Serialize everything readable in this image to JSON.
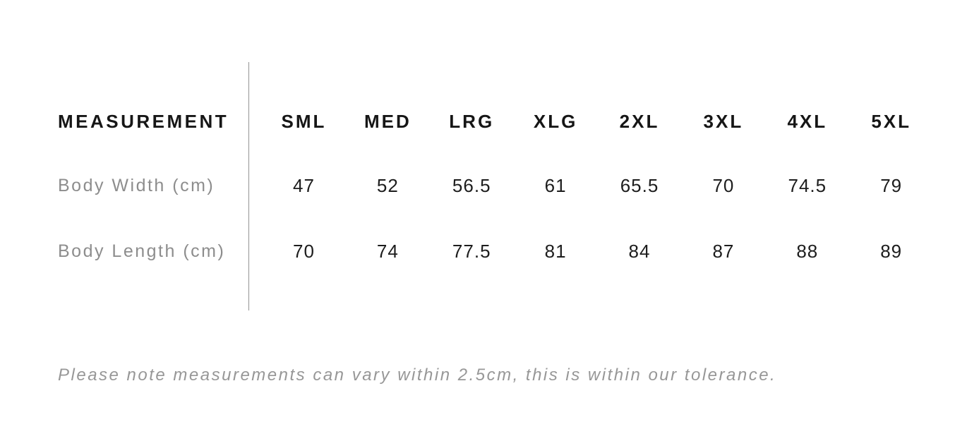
{
  "colors": {
    "background": "#ffffff",
    "header_text": "#161616",
    "value_text": "#1d1d1d",
    "label_text": "#8d8d8d",
    "note_text": "#979797",
    "divider": "#949494"
  },
  "size_chart": {
    "header": {
      "measurement_label": "MEASUREMENT",
      "sizes": [
        "SML",
        "MED",
        "LRG",
        "XLG",
        "2XL",
        "3XL",
        "4XL",
        "5XL"
      ]
    },
    "rows": [
      {
        "label": "Body Width (cm)",
        "values": [
          "47",
          "52",
          "56.5",
          "61",
          "65.5",
          "70",
          "74.5",
          "79"
        ]
      },
      {
        "label": "Body Length (cm)",
        "values": [
          "70",
          "74",
          "77.5",
          "81",
          "84",
          "87",
          "88",
          "89"
        ]
      }
    ],
    "note": "Please note measurements can vary within 2.5cm, this is within our tolerance."
  }
}
